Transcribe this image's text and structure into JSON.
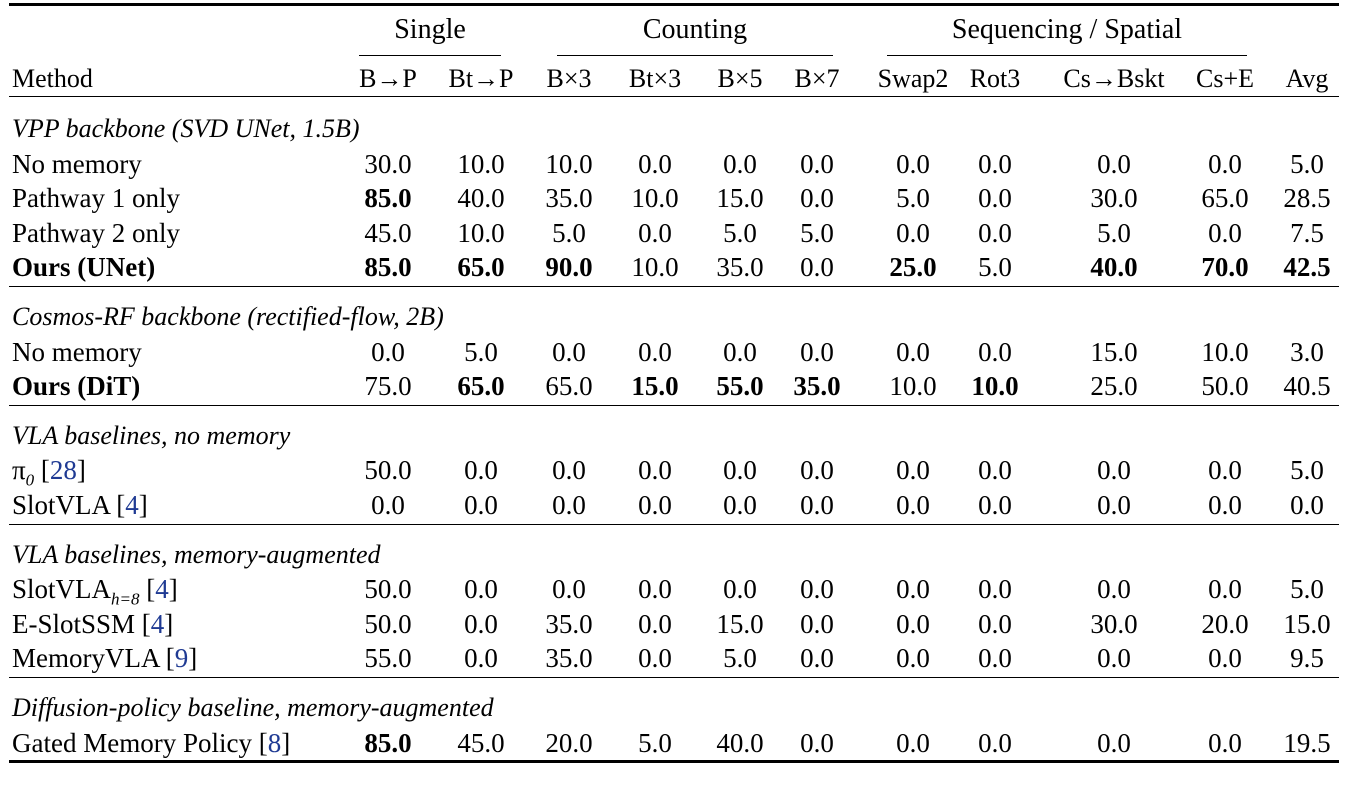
{
  "groups": [
    {
      "label": "Single"
    },
    {
      "label": "Counting"
    },
    {
      "label": "Sequencing / Spatial"
    }
  ],
  "columns": [
    "Method",
    "B→P",
    "Bt→P",
    "B×3",
    "Bt×3",
    "B×5",
    "B×7",
    "Swap2",
    "Rot3",
    "Cs→Bskt",
    "Cs+E",
    "Avg"
  ],
  "sections": [
    {
      "title": "VPP backbone (SVD UNet, 1.5B)",
      "rows": [
        {
          "method": "No memory",
          "cite": "",
          "values": [
            "30.0",
            "10.0",
            "10.0",
            "0.0",
            "0.0",
            "0.0",
            "0.0",
            "0.0",
            "0.0",
            "0.0",
            "5.0"
          ],
          "bold": []
        },
        {
          "method": "Pathway 1 only",
          "cite": "",
          "values": [
            "85.0",
            "40.0",
            "35.0",
            "10.0",
            "15.0",
            "0.0",
            "5.0",
            "0.0",
            "30.0",
            "65.0",
            "28.5"
          ],
          "bold": [
            0
          ]
        },
        {
          "method": "Pathway 2 only",
          "cite": "",
          "values": [
            "45.0",
            "10.0",
            "5.0",
            "0.0",
            "5.0",
            "5.0",
            "0.0",
            "0.0",
            "5.0",
            "0.0",
            "7.5"
          ],
          "bold": []
        },
        {
          "method": "Ours (UNet)",
          "cite": "",
          "values": [
            "85.0",
            "65.0",
            "90.0",
            "10.0",
            "35.0",
            "0.0",
            "25.0",
            "5.0",
            "40.0",
            "70.0",
            "42.5"
          ],
          "bold": [
            0,
            1,
            2,
            6,
            8,
            9,
            10
          ],
          "method_bold": true
        }
      ]
    },
    {
      "title": "Cosmos-RF backbone (rectified-flow, 2B)",
      "rows": [
        {
          "method": "No memory",
          "cite": "",
          "values": [
            "0.0",
            "5.0",
            "0.0",
            "0.0",
            "0.0",
            "0.0",
            "0.0",
            "0.0",
            "15.0",
            "10.0",
            "3.0"
          ],
          "bold": []
        },
        {
          "method": "Ours (DiT)",
          "cite": "",
          "values": [
            "75.0",
            "65.0",
            "65.0",
            "15.0",
            "55.0",
            "35.0",
            "10.0",
            "10.0",
            "25.0",
            "50.0",
            "40.5"
          ],
          "bold": [
            1,
            3,
            4,
            5,
            7
          ],
          "method_bold": true
        }
      ]
    },
    {
      "title": "VLA baselines, no memory",
      "rows": [
        {
          "method": "π",
          "method_sub": "0",
          "cite": "28",
          "values": [
            "50.0",
            "0.0",
            "0.0",
            "0.0",
            "0.0",
            "0.0",
            "0.0",
            "0.0",
            "0.0",
            "0.0",
            "5.0"
          ],
          "bold": []
        },
        {
          "method": "SlotVLA",
          "cite": "4",
          "values": [
            "0.0",
            "0.0",
            "0.0",
            "0.0",
            "0.0",
            "0.0",
            "0.0",
            "0.0",
            "0.0",
            "0.0",
            "0.0"
          ],
          "bold": []
        }
      ]
    },
    {
      "title": "VLA baselines, memory-augmented",
      "rows": [
        {
          "method": "SlotVLA",
          "method_sub": "h=8",
          "cite": "4",
          "values": [
            "50.0",
            "0.0",
            "0.0",
            "0.0",
            "0.0",
            "0.0",
            "0.0",
            "0.0",
            "0.0",
            "0.0",
            "5.0"
          ],
          "bold": []
        },
        {
          "method": "E-SlotSSM",
          "cite": "4",
          "values": [
            "50.0",
            "0.0",
            "35.0",
            "0.0",
            "15.0",
            "0.0",
            "0.0",
            "0.0",
            "30.0",
            "20.0",
            "15.0"
          ],
          "bold": []
        },
        {
          "method": "MemoryVLA",
          "cite": "9",
          "values": [
            "55.0",
            "0.0",
            "35.0",
            "0.0",
            "5.0",
            "0.0",
            "0.0",
            "0.0",
            "0.0",
            "0.0",
            "9.5"
          ],
          "bold": []
        }
      ]
    },
    {
      "title": "Diffusion-policy baseline, memory-augmented",
      "rows": [
        {
          "method": "Gated Memory Policy",
          "cite": "8",
          "values": [
            "85.0",
            "45.0",
            "20.0",
            "5.0",
            "40.0",
            "0.0",
            "0.0",
            "0.0",
            "0.0",
            "0.0",
            "19.5"
          ],
          "bold": [
            0
          ]
        }
      ]
    }
  ]
}
